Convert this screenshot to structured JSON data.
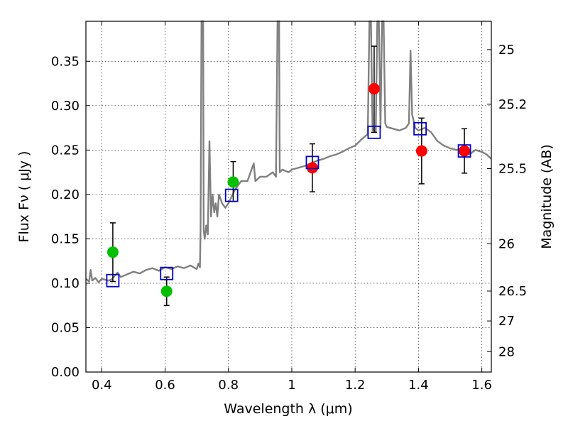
{
  "chart_data": {
    "type": "scatter",
    "xlabel": "Wavelength  λ (μm)",
    "ylabel": "Flux  Fν  ( μJy )",
    "y2label": "Magnitude (AB)",
    "xlim": [
      0.35,
      1.63
    ],
    "ylim": [
      0.0,
      0.395
    ],
    "grid": true,
    "x_ticks": [
      {
        "value": 0.4,
        "label": "0.4"
      },
      {
        "value": 0.6,
        "label": "0.6"
      },
      {
        "value": 0.8,
        "label": "0.8"
      },
      {
        "value": 1.0,
        "label": "1"
      },
      {
        "value": 1.2,
        "label": "1.2"
      },
      {
        "value": 1.4,
        "label": "1.4"
      },
      {
        "value": 1.6,
        "label": "1.6"
      }
    ],
    "y_ticks": [
      {
        "value": 0.0,
        "label": "0.00"
      },
      {
        "value": 0.05,
        "label": "0.05"
      },
      {
        "value": 0.1,
        "label": "0.10"
      },
      {
        "value": 0.15,
        "label": "0.15"
      },
      {
        "value": 0.2,
        "label": "0.20"
      },
      {
        "value": 0.25,
        "label": "0.25"
      },
      {
        "value": 0.3,
        "label": "0.30"
      },
      {
        "value": 0.35,
        "label": "0.35"
      }
    ],
    "y2_ticks": [
      {
        "flux": 0.3631,
        "label": "25"
      },
      {
        "flux": 0.3016,
        "label": "25.2"
      },
      {
        "flux": 0.2291,
        "label": "25.5"
      },
      {
        "flux": 0.1445,
        "label": "26"
      },
      {
        "flux": 0.0912,
        "label": "26.5"
      },
      {
        "flux": 0.0575,
        "label": "27"
      },
      {
        "flux": 0.0229,
        "label": "28"
      }
    ],
    "series": [
      {
        "kind": "line",
        "color": "#808080",
        "points": [
          [
            0.35,
            0.105
          ],
          [
            0.36,
            0.102
          ],
          [
            0.365,
            0.115
          ],
          [
            0.37,
            0.103
          ],
          [
            0.38,
            0.106
          ],
          [
            0.39,
            0.101
          ],
          [
            0.4,
            0.105
          ],
          [
            0.42,
            0.103
          ],
          [
            0.43,
            0.104
          ],
          [
            0.45,
            0.112
          ],
          [
            0.46,
            0.107
          ],
          [
            0.48,
            0.11
          ],
          [
            0.5,
            0.113
          ],
          [
            0.52,
            0.111
          ],
          [
            0.54,
            0.115
          ],
          [
            0.56,
            0.117
          ],
          [
            0.58,
            0.114
          ],
          [
            0.6,
            0.118
          ],
          [
            0.62,
            0.116
          ],
          [
            0.64,
            0.119
          ],
          [
            0.66,
            0.117
          ],
          [
            0.68,
            0.12
          ],
          [
            0.7,
            0.116
          ],
          [
            0.705,
            0.122
          ],
          [
            0.71,
            0.118
          ],
          [
            0.712,
            0.16
          ],
          [
            0.715,
            0.395
          ],
          [
            0.72,
            0.395
          ],
          [
            0.722,
            0.16
          ],
          [
            0.725,
            0.15
          ],
          [
            0.73,
            0.165
          ],
          [
            0.735,
            0.155
          ],
          [
            0.74,
            0.26
          ],
          [
            0.745,
            0.175
          ],
          [
            0.75,
            0.2
          ],
          [
            0.755,
            0.18
          ],
          [
            0.76,
            0.19
          ],
          [
            0.765,
            0.175
          ],
          [
            0.77,
            0.2
          ],
          [
            0.78,
            0.19
          ],
          [
            0.79,
            0.185
          ],
          [
            0.8,
            0.19
          ],
          [
            0.82,
            0.205
          ],
          [
            0.84,
            0.215
          ],
          [
            0.86,
            0.215
          ],
          [
            0.88,
            0.235
          ],
          [
            0.885,
            0.215
          ],
          [
            0.9,
            0.22
          ],
          [
            0.92,
            0.22
          ],
          [
            0.94,
            0.225
          ],
          [
            0.95,
            0.22
          ],
          [
            0.955,
            0.395
          ],
          [
            0.96,
            0.395
          ],
          [
            0.962,
            0.225
          ],
          [
            0.97,
            0.228
          ],
          [
            0.99,
            0.225
          ],
          [
            1.0,
            0.228
          ],
          [
            1.02,
            0.23
          ],
          [
            1.04,
            0.232
          ],
          [
            1.06,
            0.235
          ],
          [
            1.08,
            0.238
          ],
          [
            1.1,
            0.24
          ],
          [
            1.12,
            0.243
          ],
          [
            1.14,
            0.245
          ],
          [
            1.16,
            0.248
          ],
          [
            1.18,
            0.252
          ],
          [
            1.2,
            0.255
          ],
          [
            1.22,
            0.262
          ],
          [
            1.24,
            0.268
          ],
          [
            1.245,
            0.395
          ],
          [
            1.25,
            0.395
          ],
          [
            1.255,
            0.272
          ],
          [
            1.26,
            0.275
          ],
          [
            1.265,
            0.27
          ],
          [
            1.27,
            0.395
          ],
          [
            1.275,
            0.395
          ],
          [
            1.28,
            0.275
          ],
          [
            1.285,
            0.395
          ],
          [
            1.29,
            0.395
          ],
          [
            1.295,
            0.28
          ],
          [
            1.3,
            0.276
          ],
          [
            1.32,
            0.274
          ],
          [
            1.34,
            0.272
          ],
          [
            1.36,
            0.275
          ],
          [
            1.37,
            0.28
          ],
          [
            1.375,
            0.362
          ],
          [
            1.38,
            0.29
          ],
          [
            1.39,
            0.275
          ],
          [
            1.4,
            0.272
          ],
          [
            1.42,
            0.275
          ],
          [
            1.44,
            0.27
          ],
          [
            1.46,
            0.26
          ],
          [
            1.48,
            0.255
          ],
          [
            1.5,
            0.252
          ],
          [
            1.52,
            0.25
          ],
          [
            1.54,
            0.252
          ],
          [
            1.56,
            0.245
          ],
          [
            1.58,
            0.25
          ],
          [
            1.6,
            0.248
          ],
          [
            1.615,
            0.245
          ],
          [
            1.63,
            0.24
          ]
        ]
      },
      {
        "kind": "points",
        "color": "#00c000",
        "marker": "circle",
        "points": [
          {
            "x": 0.435,
            "y": 0.135,
            "lo": 0.102,
            "hi": 0.168
          },
          {
            "x": 0.605,
            "y": 0.091,
            "lo": 0.075,
            "hi": 0.107
          },
          {
            "x": 0.815,
            "y": 0.214,
            "lo": 0.192,
            "hi": 0.237
          }
        ]
      },
      {
        "kind": "points",
        "color": "#ff0000",
        "marker": "circle",
        "points": [
          {
            "x": 1.065,
            "y": 0.23,
            "lo": 0.203,
            "hi": 0.257
          },
          {
            "x": 1.26,
            "y": 0.319,
            "lo": 0.27,
            "hi": 0.367
          },
          {
            "x": 1.41,
            "y": 0.249,
            "lo": 0.212,
            "hi": 0.286
          },
          {
            "x": 1.545,
            "y": 0.249,
            "lo": 0.224,
            "hi": 0.274
          }
        ]
      },
      {
        "kind": "points",
        "color": "#0000cc",
        "marker": "square",
        "points": [
          {
            "x": 0.435,
            "y": 0.103
          },
          {
            "x": 0.605,
            "y": 0.111
          },
          {
            "x": 0.81,
            "y": 0.199
          },
          {
            "x": 1.065,
            "y": 0.236
          },
          {
            "x": 1.26,
            "y": 0.27
          },
          {
            "x": 1.405,
            "y": 0.274
          },
          {
            "x": 1.545,
            "y": 0.249
          }
        ]
      }
    ]
  }
}
